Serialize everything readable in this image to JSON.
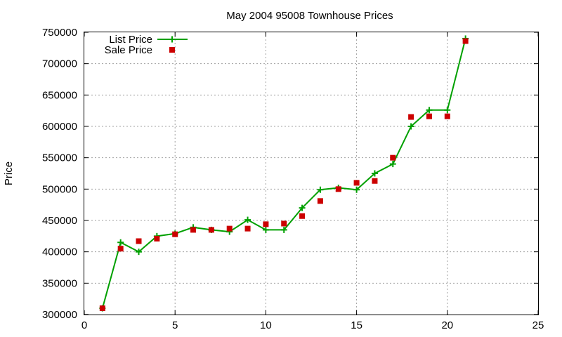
{
  "chart_data": {
    "type": "line",
    "title": "May 2004 95008 Townhouse Prices",
    "xlabel": "",
    "ylabel": "Price",
    "xlim": [
      0,
      25
    ],
    "ylim": [
      300000,
      750000
    ],
    "x_ticks": [
      0,
      5,
      10,
      15,
      20,
      25
    ],
    "y_ticks": [
      300000,
      350000,
      400000,
      450000,
      500000,
      550000,
      600000,
      650000,
      700000,
      750000
    ],
    "grid": true,
    "legend_position": "top-left",
    "series": [
      {
        "name": "List Price",
        "style": "line-with-plus-markers",
        "color": "#00a000",
        "x": [
          1,
          2,
          3,
          4,
          5,
          6,
          7,
          8,
          9,
          10,
          11,
          12,
          13,
          14,
          15,
          16,
          17,
          18,
          19,
          20,
          21
        ],
        "values": [
          310000,
          415000,
          400000,
          425000,
          429000,
          439000,
          435000,
          432000,
          451000,
          435000,
          435000,
          470000,
          499000,
          502000,
          499000,
          525000,
          540000,
          600000,
          626000,
          626000,
          740000
        ]
      },
      {
        "name": "Sale Price",
        "style": "square-markers",
        "color": "#cc0000",
        "x": [
          1,
          2,
          3,
          4,
          5,
          6,
          7,
          8,
          9,
          10,
          11,
          12,
          13,
          14,
          15,
          16,
          17,
          18,
          19,
          20,
          21
        ],
        "values": [
          310000,
          405000,
          417000,
          421000,
          428000,
          435000,
          435000,
          437000,
          437000,
          444000,
          445000,
          457000,
          481000,
          500000,
          510000,
          513000,
          550000,
          615000,
          616000,
          616000,
          736000
        ]
      }
    ]
  }
}
